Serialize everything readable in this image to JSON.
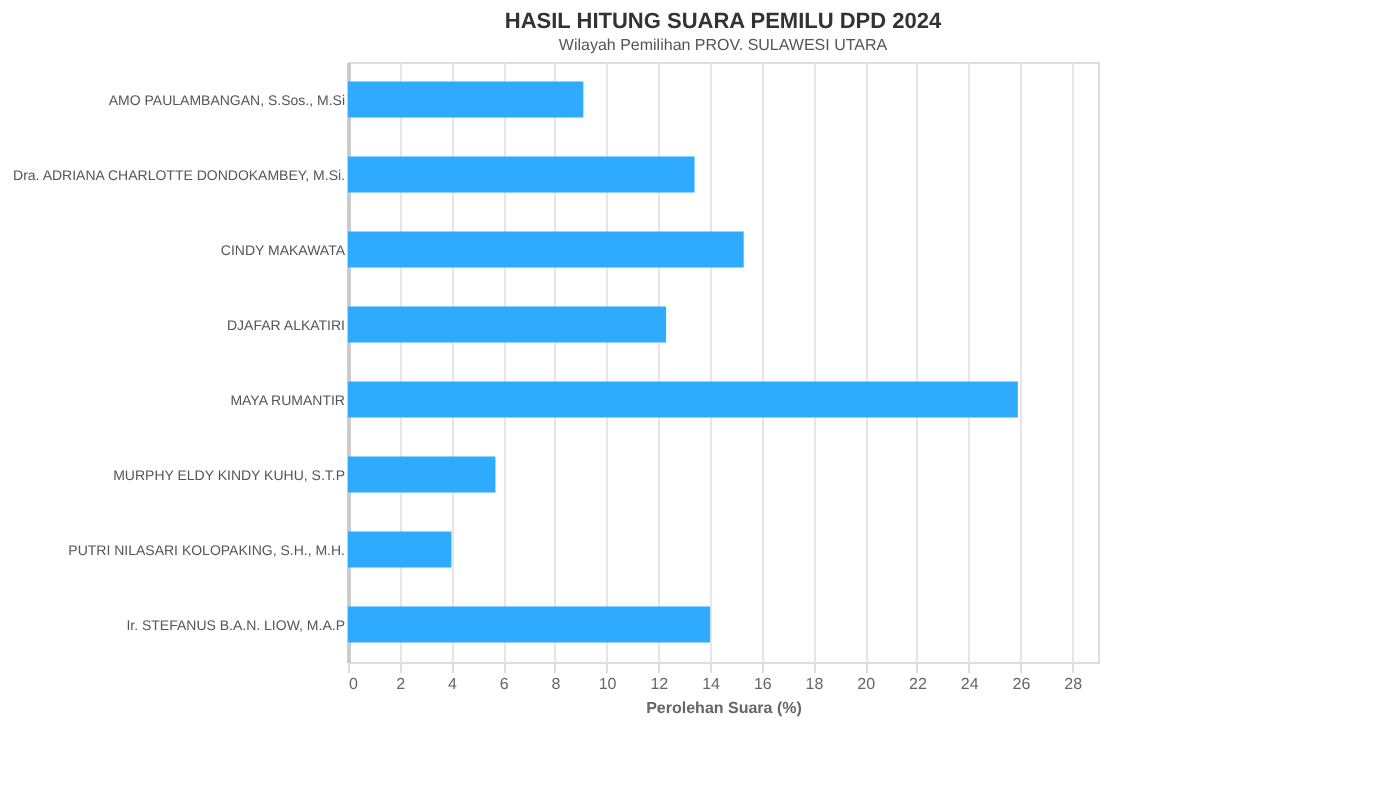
{
  "chart_data": {
    "type": "bar",
    "orientation": "horizontal",
    "title": "HASIL HITUNG SUARA PEMILU DPD 2024",
    "annotations": [
      "Wilayah Pemilihan PROV. SULAWESI UTARA"
    ],
    "categories": [
      "AMO PAULAMBANGAN, S.Sos., M.Si",
      "Dra. ADRIANA CHARLOTTE DONDOKAMBEY, M.Si.",
      "CINDY MAKAWATA",
      "DJAFAR ALKATIRI",
      "MAYA RUMANTIR",
      "MURPHY ELDY KINDY KUHU, S.T.P",
      "PUTRI NILASARI KOLOPAKING, S.H., M.H.",
      "Ir. STEFANUS B.A.N. LIOW, M.A.P"
    ],
    "values": [
      9.1,
      13.4,
      15.3,
      12.3,
      25.9,
      5.7,
      4.0,
      14.0
    ],
    "color": "#2eaaff",
    "xlabel": "Perolehan Suara (%)",
    "xlim": [
      0,
      29
    ],
    "xticks": [
      0,
      2,
      4,
      6,
      8,
      10,
      12,
      14,
      16,
      18,
      20,
      22,
      24,
      26,
      28
    ],
    "grid": "x"
  }
}
